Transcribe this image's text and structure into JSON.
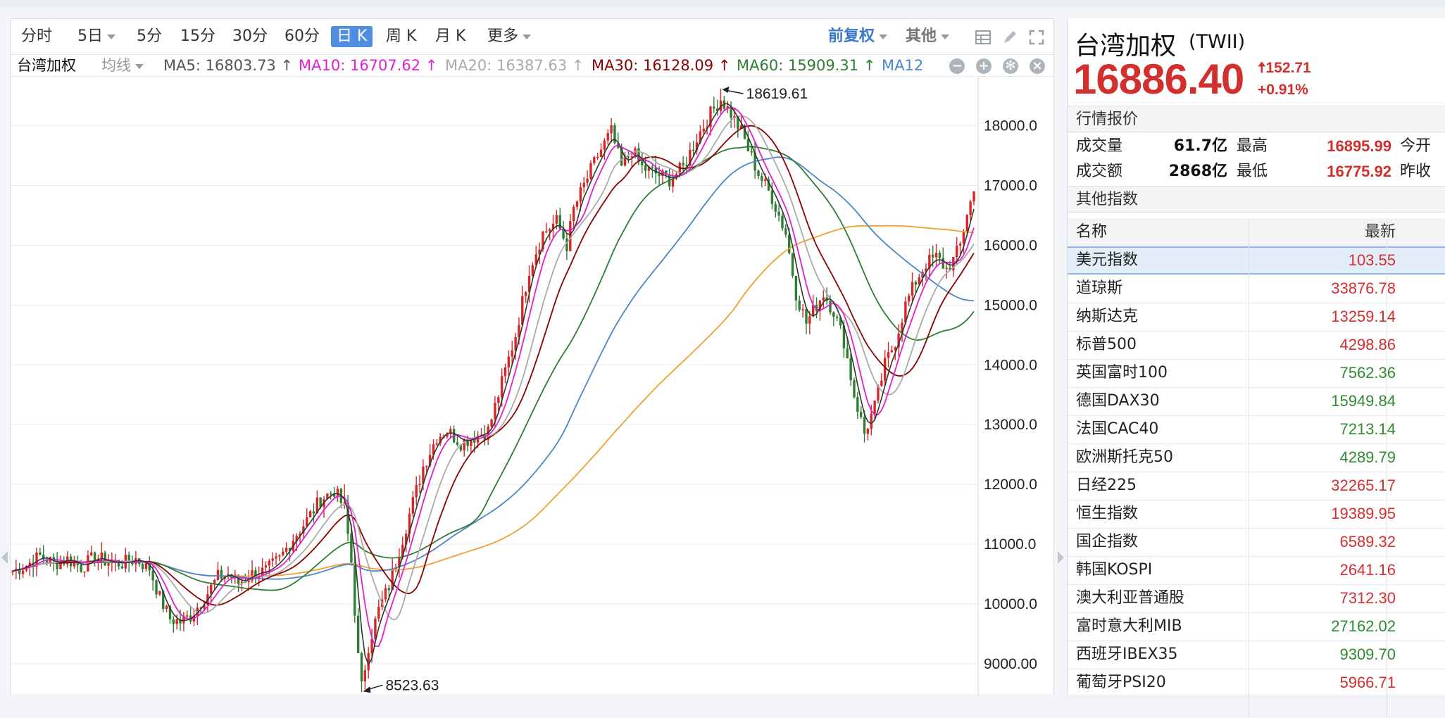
{
  "toolbar": {
    "periods": [
      "分时",
      "5日",
      "5分",
      "15分",
      "30分",
      "60分",
      "日 K",
      "周 K",
      "月 K",
      "更多"
    ],
    "active_period": "日 K",
    "adjust": "前复权",
    "other": "其他"
  },
  "ma_bar": {
    "name": "台湾加权",
    "mode": "均线",
    "ma5": "MA5: 16803.73 ↑",
    "ma10": "MA10: 16707.62 ↑",
    "ma20": "MA20: 16387.63 ↑",
    "ma30": "MA30: 16128.09 ↑",
    "ma60": "MA60: 15909.31 ↑",
    "ma120": "MA12"
  },
  "colors": {
    "ma5": "#333333",
    "ma10": "#e020d0",
    "ma20": "#aaaaaa",
    "ma30": "#8b0000",
    "ma60": "#2e7d32",
    "ma120": "#4a86c8",
    "ma250": "#f0a030",
    "up": "#d62728",
    "down": "#2e7d32"
  },
  "chart_data": {
    "type": "candlestick",
    "y_ticks": [
      "18000.0",
      "17000.0",
      "16000.0",
      "15000.0",
      "14000.0",
      "13000.0",
      "12000.0",
      "11000.0",
      "10000.0",
      "9000.00"
    ],
    "ylim": [
      8480,
      18820
    ],
    "high_label": "18619.61",
    "low_label": "8523.63",
    "high_value": 18619.61,
    "low_value": 8523.63,
    "close_path": [
      [
        0,
        10550
      ],
      [
        4,
        10650
      ],
      [
        8,
        10800
      ],
      [
        12,
        10680
      ],
      [
        16,
        10750
      ],
      [
        20,
        10620
      ],
      [
        24,
        10780
      ],
      [
        28,
        10700
      ],
      [
        32,
        10680
      ],
      [
        36,
        10750
      ],
      [
        40,
        10600
      ],
      [
        43,
        10100
      ],
      [
        46,
        9750
      ],
      [
        49,
        9700
      ],
      [
        52,
        9800
      ],
      [
        56,
        10100
      ],
      [
        60,
        10450
      ],
      [
        63,
        10500
      ],
      [
        66,
        10350
      ],
      [
        70,
        10500
      ],
      [
        74,
        10550
      ],
      [
        78,
        10750
      ],
      [
        82,
        11100
      ],
      [
        86,
        11400
      ],
      [
        90,
        11750
      ],
      [
        94,
        11900
      ],
      [
        97,
        11600
      ],
      [
        99,
        10700
      ],
      [
        101,
        9100
      ],
      [
        102,
        8600
      ],
      [
        104,
        9300
      ],
      [
        107,
        9900
      ],
      [
        110,
        10300
      ],
      [
        113,
        10900
      ],
      [
        117,
        11700
      ],
      [
        120,
        12300
      ],
      [
        124,
        12800
      ],
      [
        127,
        12900
      ],
      [
        131,
        12700
      ],
      [
        135,
        12800
      ],
      [
        139,
        12900
      ],
      [
        143,
        13700
      ],
      [
        147,
        14500
      ],
      [
        151,
        15600
      ],
      [
        155,
        16200
      ],
      [
        159,
        16400
      ],
      [
        162,
        16000
      ],
      [
        164,
        16600
      ],
      [
        167,
        17000
      ],
      [
        171,
        17500
      ],
      [
        175,
        17900
      ],
      [
        178,
        17300
      ],
      [
        181,
        17600
      ],
      [
        184,
        17300
      ],
      [
        188,
        17200
      ],
      [
        192,
        17100
      ],
      [
        196,
        17300
      ],
      [
        200,
        17800
      ],
      [
        204,
        18200
      ],
      [
        207,
        18450
      ],
      [
        210,
        18200
      ],
      [
        213,
        17900
      ],
      [
        215,
        17600
      ],
      [
        218,
        17200
      ],
      [
        222,
        16800
      ],
      [
        226,
        16200
      ],
      [
        229,
        15200
      ],
      [
        232,
        14700
      ],
      [
        235,
        15000
      ],
      [
        237,
        15200
      ],
      [
        240,
        14900
      ],
      [
        243,
        14400
      ],
      [
        246,
        13500
      ],
      [
        249,
        12850
      ],
      [
        252,
        13300
      ],
      [
        255,
        14000
      ],
      [
        258,
        14400
      ],
      [
        261,
        15000
      ],
      [
        264,
        15400
      ],
      [
        267,
        15700
      ],
      [
        270,
        15800
      ],
      [
        273,
        15600
      ],
      [
        275,
        15750
      ],
      [
        277,
        16000
      ],
      [
        279,
        16550
      ],
      [
        281,
        16886
      ]
    ],
    "ranges": [
      [
        97,
        12000
      ],
      [
        162,
        16200
      ],
      [
        178,
        17700
      ],
      [
        188,
        17500
      ],
      [
        213,
        18000
      ],
      [
        229,
        15400
      ],
      [
        249,
        12700
      ]
    ],
    "ma_lag": {
      "ma5": 3,
      "ma10": 6,
      "ma20": 12,
      "ma30": 18,
      "ma60": 36,
      "ma120": 60,
      "ma250": 110
    }
  },
  "quote": {
    "name": "台湾加权",
    "code": "(TWII)",
    "price": "16886.40",
    "change": "152.71",
    "pct": "+0.91%",
    "section_quote": "行情报价",
    "vol_label": "成交量",
    "vol": "61.7亿",
    "amt_label": "成交额",
    "amt": "2868亿",
    "high_label": "最高",
    "high": "16895.99",
    "low_label": "最低",
    "low": "16775.92",
    "open_label": "今开",
    "prev_label": "昨收",
    "section_other": "其他指数"
  },
  "indices": {
    "col_name": "名称",
    "col_latest": "最新",
    "rows": [
      {
        "name": "美元指数",
        "value": "103.55",
        "color": "#d32f2f"
      },
      {
        "name": "道琼斯",
        "value": "33876.78",
        "color": "#d32f2f"
      },
      {
        "name": "纳斯达克",
        "value": "13259.14",
        "color": "#d32f2f"
      },
      {
        "name": "标普500",
        "value": "4298.86",
        "color": "#d32f2f"
      },
      {
        "name": "英国富时100",
        "value": "7562.36",
        "color": "#2e8b2e"
      },
      {
        "name": "德国DAX30",
        "value": "15949.84",
        "color": "#2e8b2e"
      },
      {
        "name": "法国CAC40",
        "value": "7213.14",
        "color": "#2e8b2e"
      },
      {
        "name": "欧洲斯托克50",
        "value": "4289.79",
        "color": "#2e8b2e"
      },
      {
        "name": "日经225",
        "value": "32265.17",
        "color": "#d32f2f"
      },
      {
        "name": "恒生指数",
        "value": "19389.95",
        "color": "#d32f2f"
      },
      {
        "name": "国企指数",
        "value": "6589.32",
        "color": "#d32f2f"
      },
      {
        "name": "韩国KOSPI",
        "value": "2641.16",
        "color": "#d32f2f"
      },
      {
        "name": "澳大利亚普通股",
        "value": "7312.30",
        "color": "#d32f2f"
      },
      {
        "name": "富时意大利MIB",
        "value": "27162.02",
        "color": "#2e8b2e"
      },
      {
        "name": "西班牙IBEX35",
        "value": "9309.70",
        "color": "#2e8b2e"
      },
      {
        "name": "葡萄牙PSI20",
        "value": "5966.71",
        "color": "#d32f2f"
      }
    ]
  }
}
